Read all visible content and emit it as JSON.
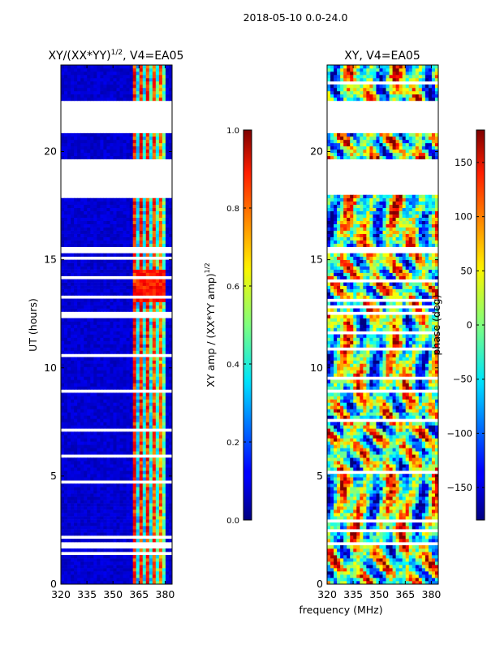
{
  "figure": {
    "suptitle": "2018-05-10 0.0-24.0",
    "xlabel_shared": "frequency (MHz)"
  },
  "chart_data": [
    {
      "type": "heatmap",
      "title": "XY/(XX*YY)",
      "title_exp": "1/2",
      "title_suffix": ", V4=EA05",
      "xlabel": "",
      "ylabel": "UT (hours)",
      "xlim": [
        320,
        384
      ],
      "ylim": [
        0,
        24
      ],
      "xticks": [
        320,
        335,
        350,
        365,
        380
      ],
      "yticks": [
        0,
        5,
        10,
        15,
        20
      ],
      "colormap": "jet",
      "colorbar": {
        "label": "XY amp / (XX*YY amp)",
        "label_exp": "1/2",
        "range": [
          0.0,
          1.0
        ],
        "ticks": [
          "0.0",
          "0.2",
          "0.4",
          "0.6",
          "0.8",
          "1.0"
        ],
        "tick_values": [
          0.0,
          0.2,
          0.4,
          0.6,
          0.8,
          1.0
        ]
      },
      "data_gaps_hours": [
        [
          20.9,
          22.3
        ],
        [
          18.0,
          19.7
        ],
        [
          15.3,
          15.6
        ],
        [
          12.5,
          12.6
        ]
      ]
    },
    {
      "type": "heatmap",
      "title": "XY, V4=EA05",
      "xlabel": "",
      "ylabel": "",
      "xlim": [
        320,
        384
      ],
      "ylim": [
        0,
        24
      ],
      "xticks": [
        320,
        335,
        350,
        365,
        380
      ],
      "yticks": [
        0,
        5,
        10,
        15,
        20
      ],
      "colormap": "jet",
      "colorbar": {
        "label": "phase (deg)",
        "range": [
          -180,
          180
        ],
        "ticks": [
          "150",
          "100",
          "50",
          "0",
          "−50",
          "−100",
          "−150"
        ],
        "tick_values": [
          150,
          100,
          50,
          0,
          -50,
          -100,
          -150
        ]
      },
      "data_gaps_hours": [
        [
          20.9,
          22.3
        ],
        [
          18.0,
          19.7
        ],
        [
          15.3,
          15.6
        ],
        [
          12.5,
          12.6
        ]
      ]
    }
  ]
}
